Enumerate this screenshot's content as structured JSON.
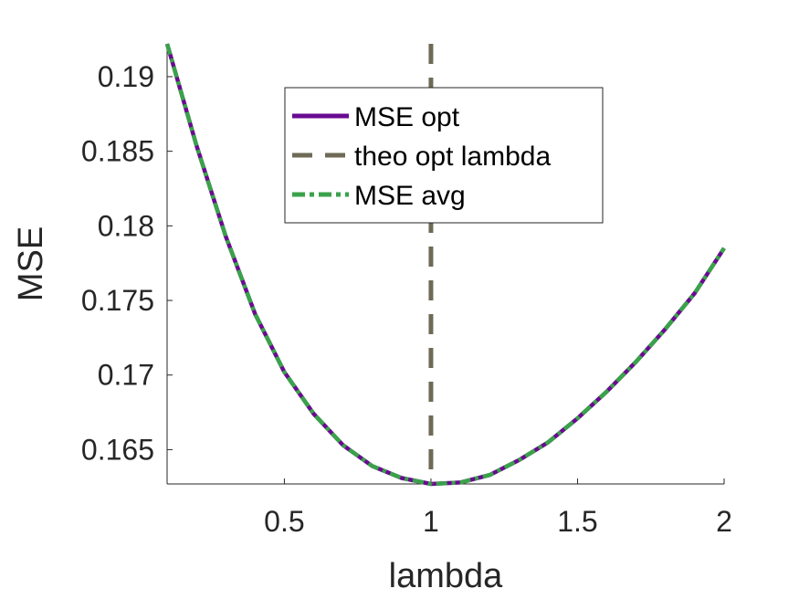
{
  "chart_data": {
    "type": "line",
    "title": "",
    "xlabel": "lambda",
    "ylabel": "MSE",
    "xlim": [
      0.1,
      2.0
    ],
    "ylim": [
      0.1627,
      0.1922
    ],
    "xticks": [
      0.5,
      1,
      1.5,
      2
    ],
    "xtick_labels": [
      "0.5",
      "1",
      "1.5",
      "2"
    ],
    "yticks": [
      0.165,
      0.17,
      0.175,
      0.18,
      0.185,
      0.19
    ],
    "ytick_labels": [
      "0.165",
      "0.17",
      "0.175",
      "0.18",
      "0.185",
      "0.19"
    ],
    "grid": false,
    "legend_position": "upper-center",
    "x": [
      0.1,
      0.2,
      0.3,
      0.4,
      0.5,
      0.6,
      0.7,
      0.8,
      0.9,
      1.0,
      1.1,
      1.2,
      1.3,
      1.4,
      1.5,
      1.6,
      1.7,
      1.8,
      1.9,
      2.0
    ],
    "series": [
      {
        "name": "MSE opt",
        "style": "solid",
        "color": "#6a0a91",
        "values": [
          0.1922,
          0.1854,
          0.1793,
          0.1741,
          0.1702,
          0.1674,
          0.1653,
          0.1639,
          0.1631,
          0.1627,
          0.1628,
          0.1633,
          0.1643,
          0.1655,
          0.1671,
          0.1689,
          0.1709,
          0.1731,
          0.1755,
          0.1785
        ]
      },
      {
        "name": "theo opt lambda",
        "style": "dashed",
        "color": "#6e6a56",
        "vertical_x": 1.0
      },
      {
        "name": "MSE avg",
        "style": "dash-dot",
        "color": "#3aa24a",
        "values": [
          0.1922,
          0.1854,
          0.1793,
          0.1741,
          0.1702,
          0.1674,
          0.1653,
          0.1639,
          0.1631,
          0.1627,
          0.1628,
          0.1633,
          0.1643,
          0.1655,
          0.1671,
          0.1689,
          0.1709,
          0.1731,
          0.1755,
          0.1785
        ]
      }
    ]
  }
}
